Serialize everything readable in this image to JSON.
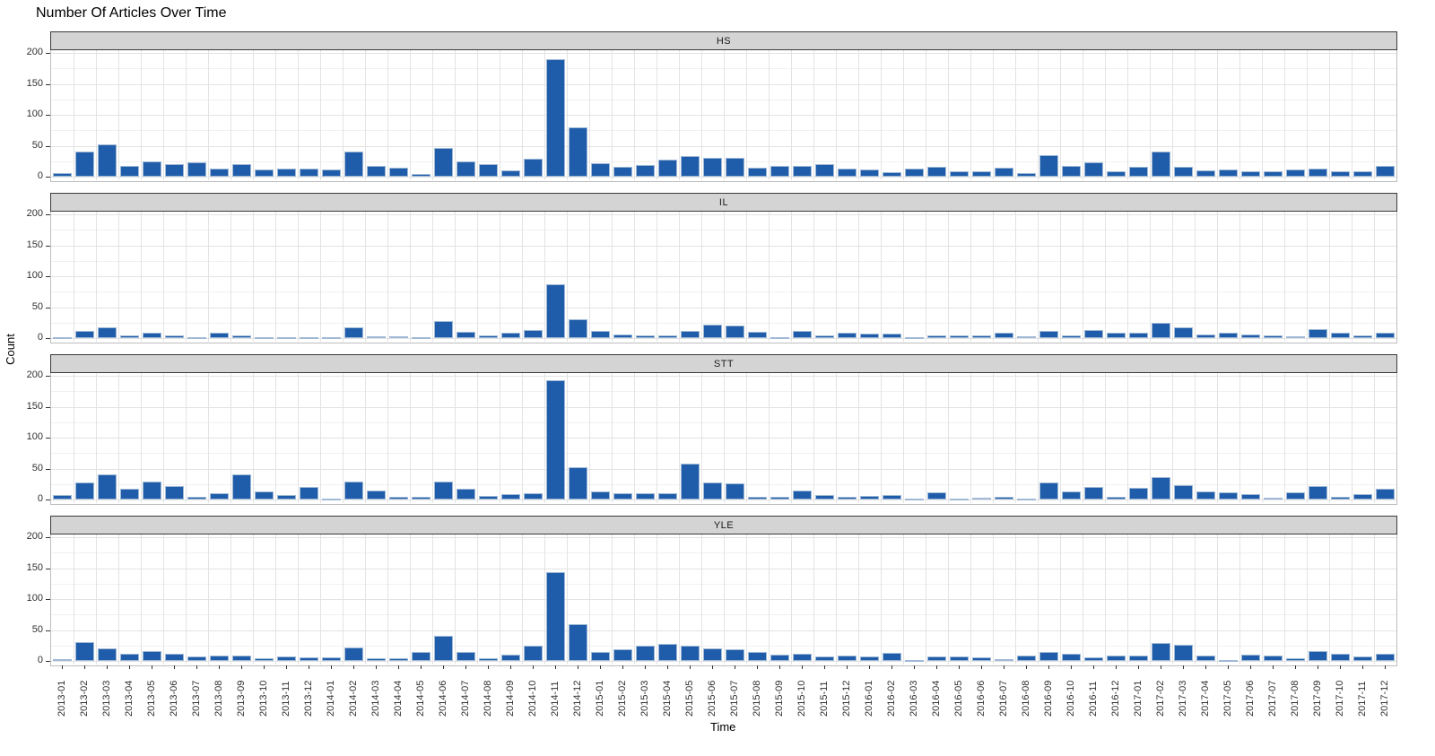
{
  "title": "Number Of Articles Over Time",
  "axes": {
    "x_title": "Time",
    "y_title": "Count"
  },
  "colors": {
    "bar_fill": "#1f5ca9",
    "bar_border": "#9fb9d6",
    "strip_bg": "#d4d4d4",
    "panel_border": "#bdbdbd",
    "grid_major": "#e3e3e3",
    "grid_minor": "#f0f0f0",
    "tick_text": "#303030"
  },
  "chart_data": {
    "type": "bar",
    "title": "Number Of Articles Over Time",
    "xlabel": "Time",
    "ylabel": "Count",
    "legend_position": "none",
    "grid": true,
    "ylim": [
      0,
      200
    ],
    "y_ticks": [
      0,
      50,
      100,
      150,
      200
    ],
    "facets": [
      "HS",
      "IL",
      "STT",
      "YLE"
    ],
    "categories": [
      "2013-01",
      "2013-02",
      "2013-03",
      "2013-04",
      "2013-05",
      "2013-06",
      "2013-07",
      "2013-08",
      "2013-09",
      "2013-10",
      "2013-11",
      "2013-12",
      "2014-01",
      "2014-02",
      "2014-03",
      "2014-04",
      "2014-05",
      "2014-06",
      "2014-07",
      "2014-08",
      "2014-09",
      "2014-10",
      "2014-11",
      "2014-12",
      "2015-01",
      "2015-02",
      "2015-03",
      "2015-04",
      "2015-05",
      "2015-06",
      "2015-07",
      "2015-08",
      "2015-09",
      "2015-10",
      "2015-11",
      "2015-12",
      "2016-01",
      "2016-02",
      "2016-03",
      "2016-04",
      "2016-05",
      "2016-06",
      "2016-07",
      "2016-08",
      "2016-09",
      "2016-10",
      "2016-11",
      "2016-12",
      "2017-01",
      "2017-02",
      "2017-03",
      "2017-04",
      "2017-05",
      "2017-06",
      "2017-07",
      "2017-08",
      "2017-09",
      "2017-10",
      "2017-11",
      "2017-12"
    ],
    "series": [
      {
        "name": "HS",
        "values": [
          6,
          40,
          52,
          17,
          25,
          20,
          23,
          13,
          21,
          11,
          13,
          13,
          11,
          40,
          18,
          15,
          4,
          46,
          24,
          20,
          10,
          29,
          190,
          80,
          22,
          16,
          19,
          28,
          33,
          30,
          30,
          15,
          17,
          17,
          21,
          13,
          11,
          7,
          13,
          16,
          9,
          9,
          14,
          6,
          35,
          18,
          23,
          8,
          16,
          40,
          16,
          10,
          11,
          9,
          9,
          11,
          13,
          9,
          8,
          18
        ]
      },
      {
        "name": "IL",
        "values": [
          1,
          11,
          17,
          5,
          9,
          4,
          1,
          8,
          5,
          1,
          1,
          1,
          2,
          18,
          3,
          3,
          1,
          28,
          10,
          4,
          8,
          13,
          87,
          30,
          11,
          6,
          4,
          5,
          12,
          22,
          20,
          10,
          2,
          11,
          5,
          9,
          7,
          7,
          2,
          4,
          5,
          5,
          8,
          3,
          12,
          4,
          13,
          9,
          9,
          25,
          18,
          6,
          9,
          6,
          5,
          3,
          15,
          9,
          5,
          8
        ]
      },
      {
        "name": "STT",
        "values": [
          7,
          28,
          41,
          18,
          29,
          22,
          5,
          10,
          41,
          13,
          7,
          20,
          2,
          29,
          15,
          4,
          5,
          29,
          18,
          6,
          9,
          10,
          193,
          52,
          13,
          10,
          10,
          10,
          58,
          28,
          26,
          4,
          5,
          14,
          7,
          5,
          6,
          7,
          2,
          12,
          1,
          3,
          5,
          2,
          27,
          13,
          21,
          4,
          19,
          36,
          23,
          13,
          11,
          9,
          3,
          12,
          22,
          4,
          9,
          18
        ]
      },
      {
        "name": "YLE",
        "values": [
          3,
          30,
          21,
          11,
          16,
          11,
          7,
          8,
          8,
          5,
          7,
          6,
          6,
          22,
          5,
          5,
          14,
          40,
          14,
          4,
          10,
          25,
          143,
          59,
          14,
          19,
          25,
          28,
          24,
          21,
          19,
          15,
          10,
          12,
          7,
          9,
          7,
          13,
          2,
          7,
          7,
          6,
          3,
          8,
          15,
          11,
          6,
          8,
          9,
          29,
          26,
          8,
          2,
          10,
          8,
          5,
          16,
          12,
          7,
          12
        ]
      }
    ]
  }
}
